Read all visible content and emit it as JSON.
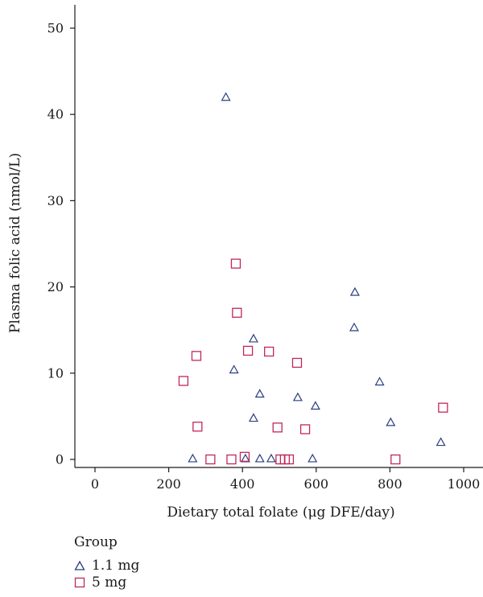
{
  "chart_data": {
    "type": "scatter",
    "xlabel": "Dietary total folate (μg DFE/day)",
    "ylabel": "Plasma folic acid (nmol/L)",
    "xlim": [
      -110,
      1010
    ],
    "ylim": [
      -2,
      52
    ],
    "xticks": [
      0,
      200,
      400,
      600,
      800,
      1000
    ],
    "yticks": [
      0,
      10,
      20,
      30,
      40,
      50
    ],
    "series": [
      {
        "name": "1.1 mg",
        "marker": "triangle",
        "color": "#2b3f7f",
        "points": [
          [
            355,
            42
          ],
          [
            430,
            14
          ],
          [
            705,
            19.4
          ],
          [
            703,
            15.3
          ],
          [
            377,
            10.4
          ],
          [
            772,
            9
          ],
          [
            447,
            7.6
          ],
          [
            550,
            7.2
          ],
          [
            598,
            6.2
          ],
          [
            430,
            4.8
          ],
          [
            802,
            4.3
          ],
          [
            938,
            2
          ],
          [
            265,
            0.1
          ],
          [
            408,
            0.1
          ],
          [
            447,
            0.1
          ],
          [
            478,
            0.1
          ],
          [
            590,
            0.1
          ]
        ]
      },
      {
        "name": "5 mg",
        "marker": "square",
        "color": "#c0285a",
        "points": [
          [
            382,
            22.7
          ],
          [
            385,
            17
          ],
          [
            275,
            12
          ],
          [
            415,
            12.6
          ],
          [
            472,
            12.5
          ],
          [
            548,
            11.2
          ],
          [
            240,
            9.1
          ],
          [
            944,
            6
          ],
          [
            278,
            3.8
          ],
          [
            495,
            3.7
          ],
          [
            570,
            3.5
          ],
          [
            313,
            0
          ],
          [
            370,
            0
          ],
          [
            406,
            0.3
          ],
          [
            503,
            0
          ],
          [
            515,
            0
          ],
          [
            526,
            0
          ],
          [
            815,
            0
          ]
        ]
      }
    ]
  },
  "legend": {
    "title": "Group",
    "items": [
      {
        "label": "1.1 mg",
        "marker": "triangle",
        "color": "#2b3f7f"
      },
      {
        "label": "5 mg",
        "marker": "square",
        "color": "#c0285a"
      }
    ]
  }
}
